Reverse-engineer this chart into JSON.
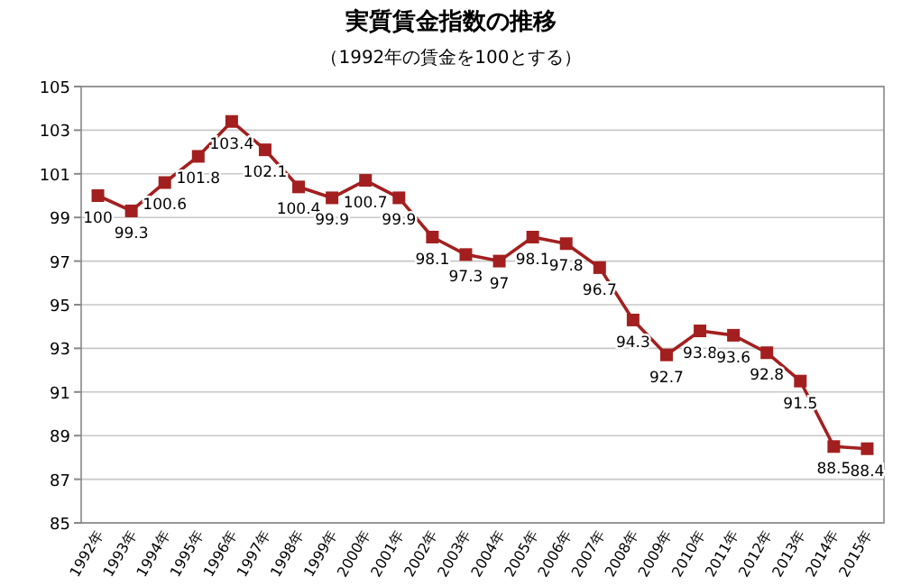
{
  "chart_data": {
    "type": "line",
    "title": "実質賃金指数の推移",
    "subtitle": "（1992年の賃金を100とする）",
    "categories": [
      "1992年",
      "1993年",
      "1994年",
      "1995年",
      "1996年",
      "1997年",
      "1998年",
      "1999年",
      "2000年",
      "2001年",
      "2002年",
      "2003年",
      "2004年",
      "2005年",
      "2006年",
      "2007年",
      "2008年",
      "2009年",
      "2010年",
      "2011年",
      "2012年",
      "2013年",
      "2014年",
      "2015年"
    ],
    "values": [
      100,
      99.3,
      100.6,
      101.8,
      103.4,
      102.1,
      100.4,
      99.9,
      100.7,
      99.9,
      98.1,
      97.3,
      97,
      98.1,
      97.8,
      96.7,
      94.3,
      92.7,
      93.8,
      93.6,
      92.8,
      91.5,
      88.5,
      88.4
    ],
    "color": "#a31f1f",
    "ylim": [
      85,
      105
    ],
    "yticks": [
      85,
      87,
      89,
      91,
      93,
      95,
      97,
      99,
      101,
      103,
      105
    ],
    "grid": "y",
    "marker": "square",
    "data_labels": true
  }
}
